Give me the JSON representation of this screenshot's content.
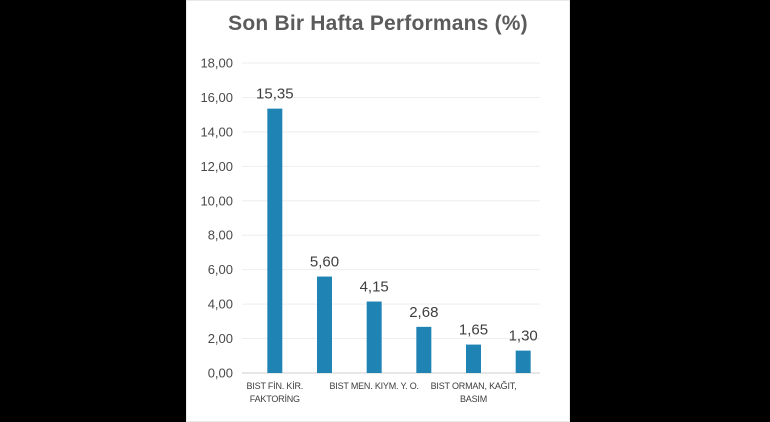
{
  "chart_data": {
    "type": "bar",
    "title": "Son Bir Hafta Performans (%)",
    "xlabel": "",
    "ylabel": "",
    "ylim": [
      0,
      18
    ],
    "yticks": [
      "0,00",
      "2,00",
      "4,00",
      "6,00",
      "8,00",
      "10,00",
      "12,00",
      "14,00",
      "16,00",
      "18,00"
    ],
    "categories": [
      [
        "BIST FİN. KİR.",
        "FAKTORİNG"
      ],
      [
        ""
      ],
      [
        "BIST MEN. KIYM. Y. O."
      ],
      [
        ""
      ],
      [
        "BIST ORMAN, KAĞIT,",
        "BASIM"
      ],
      [
        ""
      ]
    ],
    "values": [
      15.35,
      5.6,
      4.15,
      2.68,
      1.65,
      1.3
    ],
    "value_labels": [
      "15,35",
      "5,60",
      "4,15",
      "2,68",
      "1,65",
      "1,30"
    ],
    "bar_color": "#1f83b4",
    "grid": true,
    "legend": "none"
  }
}
